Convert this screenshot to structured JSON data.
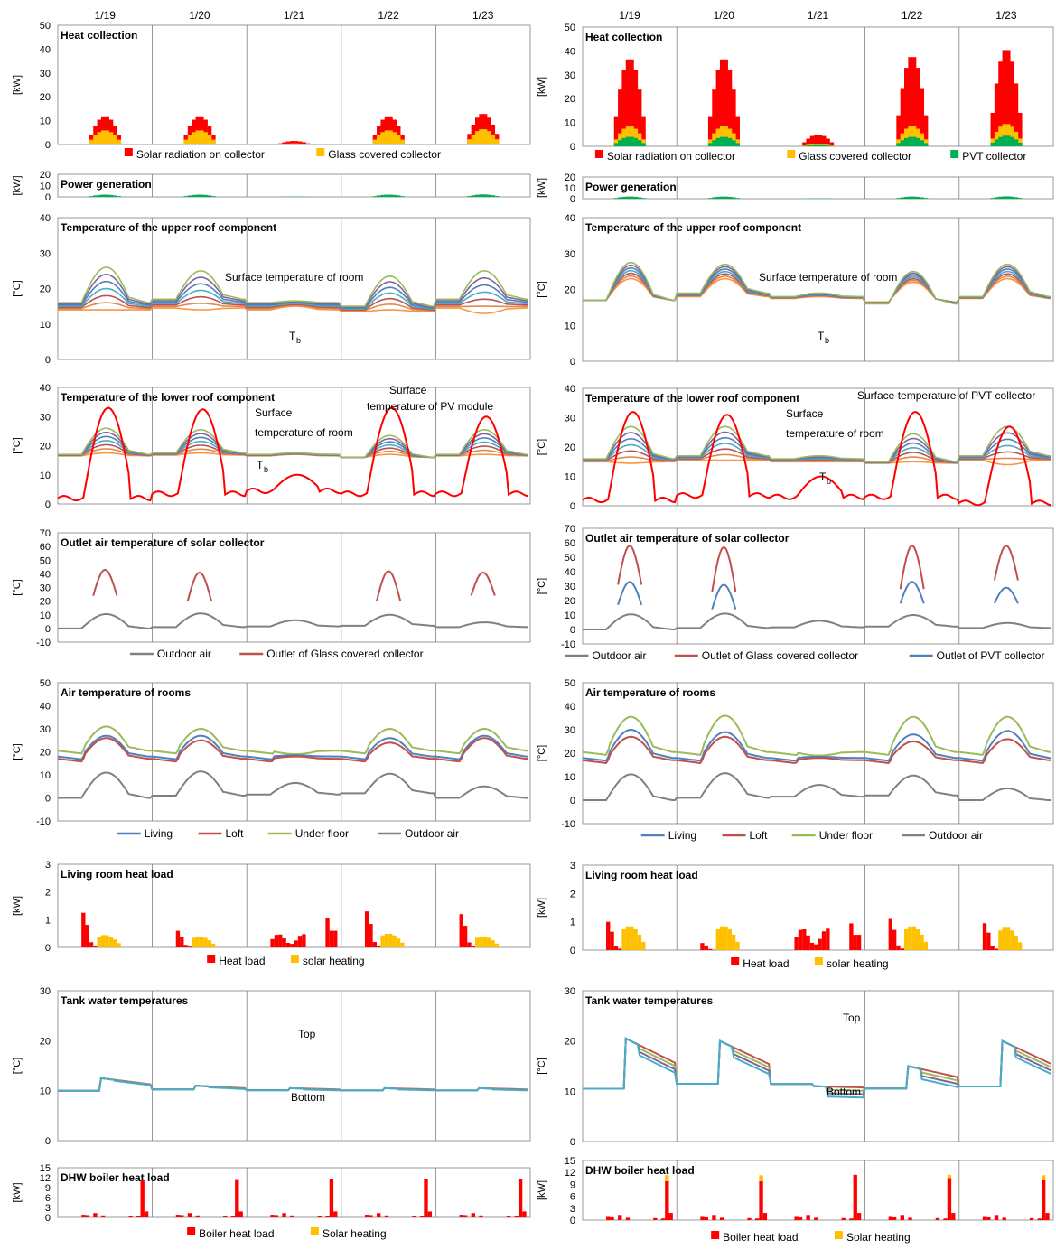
{
  "figure": {
    "days": [
      "1/19",
      "1/20",
      "1/21",
      "1/22",
      "1/23"
    ],
    "columns": [
      {
        "key": "left",
        "system": "Glass covered collector"
      },
      {
        "key": "right",
        "system": "Glass covered collector + PVT collector"
      }
    ]
  },
  "colors": {
    "solar": "#ff0000",
    "glass": "#ffc000",
    "pvt": "#00b050",
    "outdoor": "#808080",
    "outlet_glass": "#c0504d",
    "outlet_pvt": "#4f81bd",
    "living": "#4f81bd",
    "loft": "#c0504d",
    "underfloor": "#9bbb59",
    "pv_surface": "#ff0000",
    "roof_layers": [
      "#f79646",
      "#e0894d",
      "#c0504d",
      "#4bacc6",
      "#4f81bd",
      "#8064a2",
      "#9bbb59"
    ]
  },
  "chart_data": [
    {
      "id": "L1",
      "column": "left",
      "type": "bar",
      "title": "Heat collection",
      "ylabel": "[kW]",
      "ylim": [
        0,
        50
      ],
      "yticks": [
        0,
        10,
        20,
        30,
        40,
        50
      ],
      "legend": [
        "Solar radiation on collector",
        "Glass covered collector"
      ],
      "series": [
        {
          "name": "Solar radiation on collector",
          "color": "solar",
          "peaks": [
            12,
            12,
            1.5,
            12,
            13
          ]
        },
        {
          "name": "Glass covered collector",
          "color": "glass",
          "peaks": [
            6,
            6,
            0.5,
            6,
            6.5
          ]
        }
      ]
    },
    {
      "id": "L2",
      "column": "left",
      "type": "bar",
      "title": "Power generation",
      "ylabel": "[kW]",
      "ylim": [
        0,
        20
      ],
      "yticks": [
        0,
        10,
        20
      ],
      "legend": [],
      "series": [
        {
          "name": "PV",
          "color": "pvt",
          "peaks": [
            2,
            2,
            0.3,
            2,
            2.2
          ]
        }
      ]
    },
    {
      "id": "L3",
      "column": "left",
      "type": "line",
      "title": "Temperature of the upper roof component",
      "ylabel": "[°C]",
      "ylim": [
        0,
        40
      ],
      "yticks": [
        0,
        10,
        20,
        30,
        40
      ],
      "annotations": [
        "Surface  temperature of room",
        "T",
        "b"
      ],
      "layers": {
        "lows": [
          16,
          17,
          16,
          15,
          17
        ],
        "highs_top": [
          26,
          25,
          16.5,
          23.5,
          25
        ],
        "highs_bottom": [
          14,
          14,
          15,
          14,
          13
        ],
        "base": 12
      }
    },
    {
      "id": "L4",
      "column": "left",
      "type": "line",
      "title": "Temperature of the lower roof component",
      "ylabel": "[°C]",
      "ylim": [
        0,
        40
      ],
      "yticks": [
        0,
        10,
        20,
        30,
        40
      ],
      "annotations": [
        "Surface",
        "temperature  of room",
        "T",
        "b",
        "Surface",
        "temperature  of PV module"
      ],
      "layers": {
        "lows": [
          17,
          17.5,
          17,
          16,
          17
        ],
        "highs_top": [
          26,
          25.5,
          17.5,
          23.5,
          25.5
        ],
        "highs_bottom": [
          17.5,
          17.5,
          17,
          17,
          17
        ],
        "base": 16
      },
      "pv_surface": {
        "peaks": [
          33,
          32.5,
          10,
          33,
          30
        ],
        "night": [
          2,
          3.5,
          4.5,
          3.5,
          3.5
        ]
      }
    },
    {
      "id": "L5",
      "column": "left",
      "type": "line",
      "title": "Outlet  air temperature of  solar collector",
      "ylabel": "[°C]",
      "ylim": [
        -10,
        70
      ],
      "yticks": [
        -10,
        0,
        10,
        20,
        30,
        40,
        50,
        60,
        70
      ],
      "legend": [
        "Outdoor air",
        "Outlet of Glass covered collector"
      ],
      "outdoor": {
        "peaks": [
          10.5,
          11,
          6,
          10,
          4.5
        ],
        "night": [
          0,
          1,
          1.5,
          2,
          1
        ]
      },
      "outlets": [
        {
          "name": "Outlet of Glass covered collector",
          "color": "outlet_glass",
          "peaks": [
            43,
            41,
            null,
            42,
            41
          ],
          "start": [
            24,
            20,
            null,
            20,
            24
          ]
        }
      ]
    },
    {
      "id": "L6",
      "column": "left",
      "type": "line",
      "title": "Air temperature of rooms",
      "ylabel": "[°C]",
      "ylim": [
        -10,
        50
      ],
      "yticks": [
        -10,
        0,
        10,
        20,
        30,
        40,
        50
      ],
      "legend": [
        "Living",
        "Loft",
        "Under floor",
        "Outdoor air"
      ],
      "rooms": {
        "living_peaks": [
          27,
          27,
          18.5,
          26,
          27
        ],
        "loft_peaks": [
          26,
          25,
          18,
          24,
          26
        ],
        "under_peaks": [
          31,
          30,
          19,
          30,
          30
        ],
        "night": [
          18,
          18,
          18,
          18,
          18
        ]
      },
      "outdoor": {
        "peaks": [
          11,
          11.5,
          6.5,
          10.5,
          5
        ],
        "night": [
          0,
          1,
          1.5,
          2,
          0
        ]
      }
    },
    {
      "id": "L7",
      "column": "left",
      "type": "bar",
      "title": "Living room heat load",
      "ylabel": "[kW]",
      "ylim": [
        0,
        3
      ],
      "yticks": [
        0,
        1,
        2,
        3
      ],
      "legend": [
        "Heat load",
        "solar heating"
      ],
      "load": [
        1.25,
        0.6,
        0.6,
        1.3,
        1.2
      ],
      "solar": [
        0.45,
        0.4,
        0,
        0.5,
        0.4
      ]
    },
    {
      "id": "L8",
      "column": "left",
      "type": "line",
      "title": "Tank water temperatures",
      "ylabel": "[°C]",
      "ylim": [
        0,
        30
      ],
      "yticks": [
        0,
        10,
        20,
        30
      ],
      "annotations": [
        "Top",
        "Bottom"
      ],
      "tank": {
        "levels": [
          12.5,
          11,
          10.5,
          10.5,
          10.5
        ],
        "spread": 0.2,
        "base": 10
      }
    },
    {
      "id": "L9",
      "column": "left",
      "type": "bar",
      "title": "DHW boiler heat load",
      "ylabel": "[kW]",
      "ylim": [
        0,
        15
      ],
      "yticks": [
        0,
        3,
        6,
        9,
        12,
        15
      ],
      "legend": [
        "Boiler heat load",
        "Solar heating"
      ],
      "boiler_peak": [
        11.2,
        11.3,
        11.5,
        11.5,
        11.6
      ],
      "solar_top": [
        0,
        0,
        0,
        0,
        0
      ]
    },
    {
      "id": "R1",
      "column": "right",
      "type": "bar",
      "title": "Heat collection",
      "ylabel": "[kW]",
      "ylim": [
        0,
        50
      ],
      "yticks": [
        0,
        10,
        20,
        30,
        40,
        50
      ],
      "legend": [
        "Solar radiation on collector",
        "Glass covered collector",
        "PVT collector"
      ],
      "series": [
        {
          "name": "Solar radiation on collector",
          "color": "solar",
          "peaks": [
            37,
            37,
            5,
            38,
            41
          ]
        },
        {
          "name": "Glass covered collector",
          "color": "glass",
          "peaks": [
            8.5,
            8.5,
            1,
            8.5,
            9.5
          ]
        },
        {
          "name": "PVT collector",
          "color": "pvt",
          "peaks": [
            4,
            4,
            0.5,
            4,
            4.5
          ]
        }
      ]
    },
    {
      "id": "R2",
      "column": "right",
      "type": "bar",
      "title": "Power generation",
      "ylabel": "[kW]",
      "ylim": [
        0,
        20
      ],
      "yticks": [
        0,
        10,
        20
      ],
      "legend": [],
      "series": [
        {
          "name": "PV",
          "color": "pvt",
          "peaks": [
            2,
            2,
            0.3,
            2,
            2.2
          ]
        }
      ]
    },
    {
      "id": "R3",
      "column": "right",
      "type": "line",
      "title": "Temperature of the upper roof component",
      "ylabel": "[°C]",
      "ylim": [
        0,
        40
      ],
      "yticks": [
        0,
        10,
        20,
        30,
        40
      ],
      "annotations": [
        "Surface  temperature of room",
        "T",
        "b"
      ],
      "layers": {
        "lows": [
          17,
          19,
          18,
          16,
          18
        ],
        "highs_top": [
          27.5,
          27,
          19,
          25,
          27
        ],
        "highs_bottom": [
          23,
          23,
          18,
          22,
          23
        ],
        "base": 17
      }
    },
    {
      "id": "R4",
      "column": "right",
      "type": "line",
      "title": "Temperature of the lower roof component",
      "ylabel": "[°C]",
      "ylim": [
        0,
        40
      ],
      "yticks": [
        0,
        10,
        20,
        30,
        40
      ],
      "annotations": [
        "Surface",
        "temperature  of room",
        "T",
        "b",
        "Surface temperature  of PVT collector"
      ],
      "layers": {
        "lows": [
          16,
          17,
          16,
          15,
          17
        ],
        "highs_top": [
          27,
          27,
          17,
          24.5,
          27
        ],
        "highs_bottom": [
          14.5,
          15.5,
          15,
          15,
          14
        ],
        "base": 14
      },
      "pv_surface": {
        "peaks": [
          32,
          31,
          10,
          32,
          27
        ],
        "night": [
          2,
          3.5,
          3,
          3,
          1
        ]
      }
    },
    {
      "id": "R5",
      "column": "right",
      "type": "line",
      "title": "Outlet  air temperature of  solar collector",
      "ylabel": "[°C]",
      "ylim": [
        -10,
        70
      ],
      "yticks": [
        -10,
        0,
        10,
        20,
        30,
        40,
        50,
        60,
        70
      ],
      "legend": [
        "Outdoor air",
        "Outlet of Glass covered collector",
        "Outlet of PVT collector"
      ],
      "outdoor": {
        "peaks": [
          10.5,
          11,
          6,
          10,
          4.5
        ],
        "night": [
          0,
          1,
          1.5,
          2,
          1
        ]
      },
      "outlets": [
        {
          "name": "Outlet of Glass covered collector",
          "color": "outlet_glass",
          "peaks": [
            58,
            57,
            null,
            58,
            58
          ],
          "start": [
            31,
            26,
            null,
            28,
            34
          ]
        },
        {
          "name": "Outlet of PVT collector",
          "color": "outlet_pvt",
          "peaks": [
            33,
            31,
            null,
            33,
            29
          ],
          "start": [
            17,
            14,
            null,
            18,
            18
          ]
        }
      ]
    },
    {
      "id": "R6",
      "column": "right",
      "type": "line",
      "title": "Air temperature of rooms",
      "ylabel": "[°C]",
      "ylim": [
        -10,
        50
      ],
      "yticks": [
        -10,
        0,
        10,
        20,
        30,
        40,
        50
      ],
      "legend": [
        "Living",
        "Loft",
        "Under floor",
        "Outdoor air"
      ],
      "rooms": {
        "living_peaks": [
          30,
          29,
          18.5,
          28,
          29.5
        ],
        "loft_peaks": [
          27,
          27,
          18,
          25,
          26
        ],
        "under_peaks": [
          35.5,
          36,
          19,
          35.5,
          35.5
        ],
        "night": [
          18,
          18,
          18,
          18,
          18
        ]
      },
      "outdoor": {
        "peaks": [
          11,
          11.5,
          6.5,
          10.5,
          5
        ],
        "night": [
          0,
          1,
          1.5,
          2,
          0
        ]
      }
    },
    {
      "id": "R7",
      "column": "right",
      "type": "bar",
      "title": "Living room heat load",
      "ylabel": "[kW]",
      "ylim": [
        0,
        3
      ],
      "yticks": [
        0,
        1,
        2,
        3
      ],
      "legend": [
        "Heat load",
        "solar heating"
      ],
      "load": [
        1.0,
        0.25,
        0.95,
        1.1,
        0.95
      ],
      "solar": [
        0.85,
        0.85,
        0,
        0.85,
        0.8
      ]
    },
    {
      "id": "R8",
      "column": "right",
      "type": "line",
      "title": "Tank water temperatures",
      "ylabel": "[°C]",
      "ylim": [
        0,
        30
      ],
      "yticks": [
        0,
        10,
        20,
        30
      ],
      "annotations": [
        "Top",
        "Bottom"
      ],
      "tank": {
        "levels": [
          20.5,
          20,
          11,
          15,
          20
        ],
        "spread": 2,
        "base": 10.5
      }
    },
    {
      "id": "R9",
      "column": "right",
      "type": "bar",
      "title": "DHW boiler heat load",
      "ylabel": "[kW]",
      "ylim": [
        0,
        15
      ],
      "yticks": [
        0,
        3,
        6,
        9,
        12,
        15
      ],
      "legend": [
        "Boiler heat load",
        "Solar heating"
      ],
      "boiler_peak": [
        9.8,
        9.8,
        11.4,
        10.6,
        10.0
      ],
      "solar_top": [
        1.5,
        1.5,
        0,
        0.8,
        1.3
      ]
    }
  ]
}
